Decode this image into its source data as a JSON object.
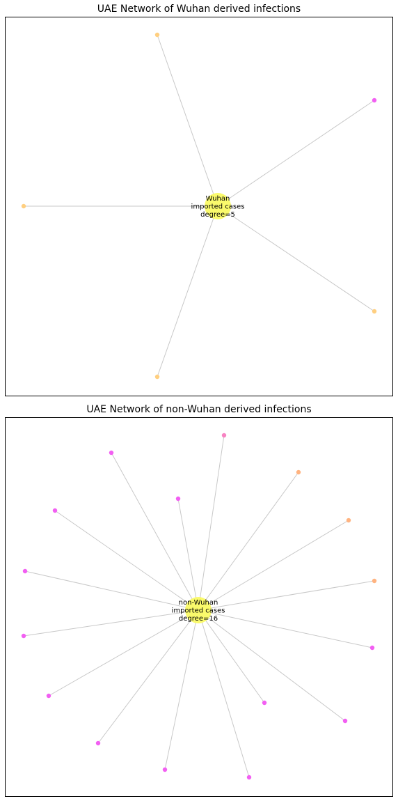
{
  "panels": [
    {
      "title": "UAE Network of Wuhan derived infections",
      "center": {
        "label_lines": [
          "Wuhan",
          "imported cases",
          "degree=5"
        ],
        "color": "#fafa64"
      },
      "edge_color": "#c8c8c8",
      "leaves": [
        {
          "color": "#ffcf80"
        },
        {
          "color": "#f25ff2"
        },
        {
          "color": "#ffcf80"
        },
        {
          "color": "#ffcf80"
        },
        {
          "color": "#ffcf80"
        }
      ]
    },
    {
      "title": "UAE Network of non-Wuhan derived infections",
      "center": {
        "label_lines": [
          "non-Wuhan",
          "imported cases",
          "degree=16"
        ],
        "color": "#fafa64"
      },
      "edge_color": "#c8c8c8",
      "leaves": [
        {
          "color": "#f783c2"
        },
        {
          "color": "#f25ff2"
        },
        {
          "color": "#f25ff2"
        },
        {
          "color": "#ffb380"
        },
        {
          "color": "#f25ff2"
        },
        {
          "color": "#ffb380"
        },
        {
          "color": "#f25ff2"
        },
        {
          "color": "#ffb380"
        },
        {
          "color": "#f25ff2"
        },
        {
          "color": "#f25ff2"
        },
        {
          "color": "#f25ff2"
        },
        {
          "color": "#f25ff2"
        },
        {
          "color": "#f25ff2"
        },
        {
          "color": "#f25ff2"
        },
        {
          "color": "#f25ff2"
        },
        {
          "color": "#f25ff2"
        }
      ]
    }
  ]
}
